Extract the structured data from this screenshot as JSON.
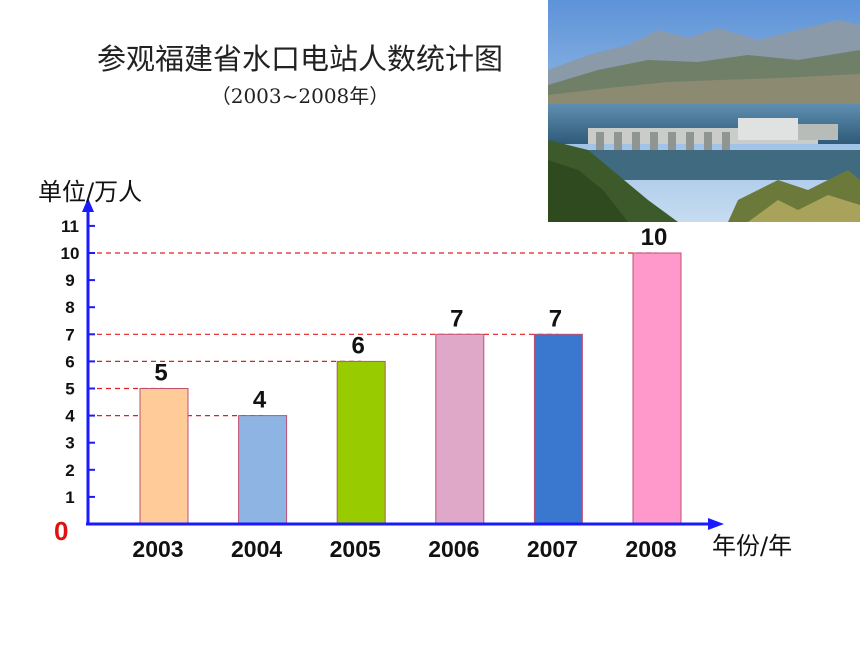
{
  "chart_data": {
    "type": "bar",
    "title": "参观福建省水口电站人数统计图",
    "subtitle": "（2003~2008年）",
    "ylabel": "单位/万人",
    "xlabel": "年份/年",
    "origin_label": "0",
    "categories": [
      "2003",
      "2004",
      "2005",
      "2006",
      "2007",
      "2008"
    ],
    "values": [
      5,
      4,
      6,
      7,
      7,
      10
    ],
    "data_labels": [
      "5",
      "4",
      "6",
      "7",
      "7",
      "10"
    ],
    "bar_colors": [
      "#ffcc99",
      "#8eb4e3",
      "#99cc00",
      "#e0a8c8",
      "#3a78d0",
      "#ff99cc"
    ],
    "yticks": [
      "1",
      "2",
      "3",
      "4",
      "5",
      "6",
      "7",
      "8",
      "9",
      "10",
      "11"
    ],
    "ylim": [
      0,
      11
    ],
    "grid": false,
    "reference_lines": [
      4,
      5,
      6,
      7,
      10
    ],
    "reference_line_color": "#e02020",
    "axis_color": "#1a1aff"
  },
  "photo": {
    "icon": "hydropower-dam-photo"
  }
}
